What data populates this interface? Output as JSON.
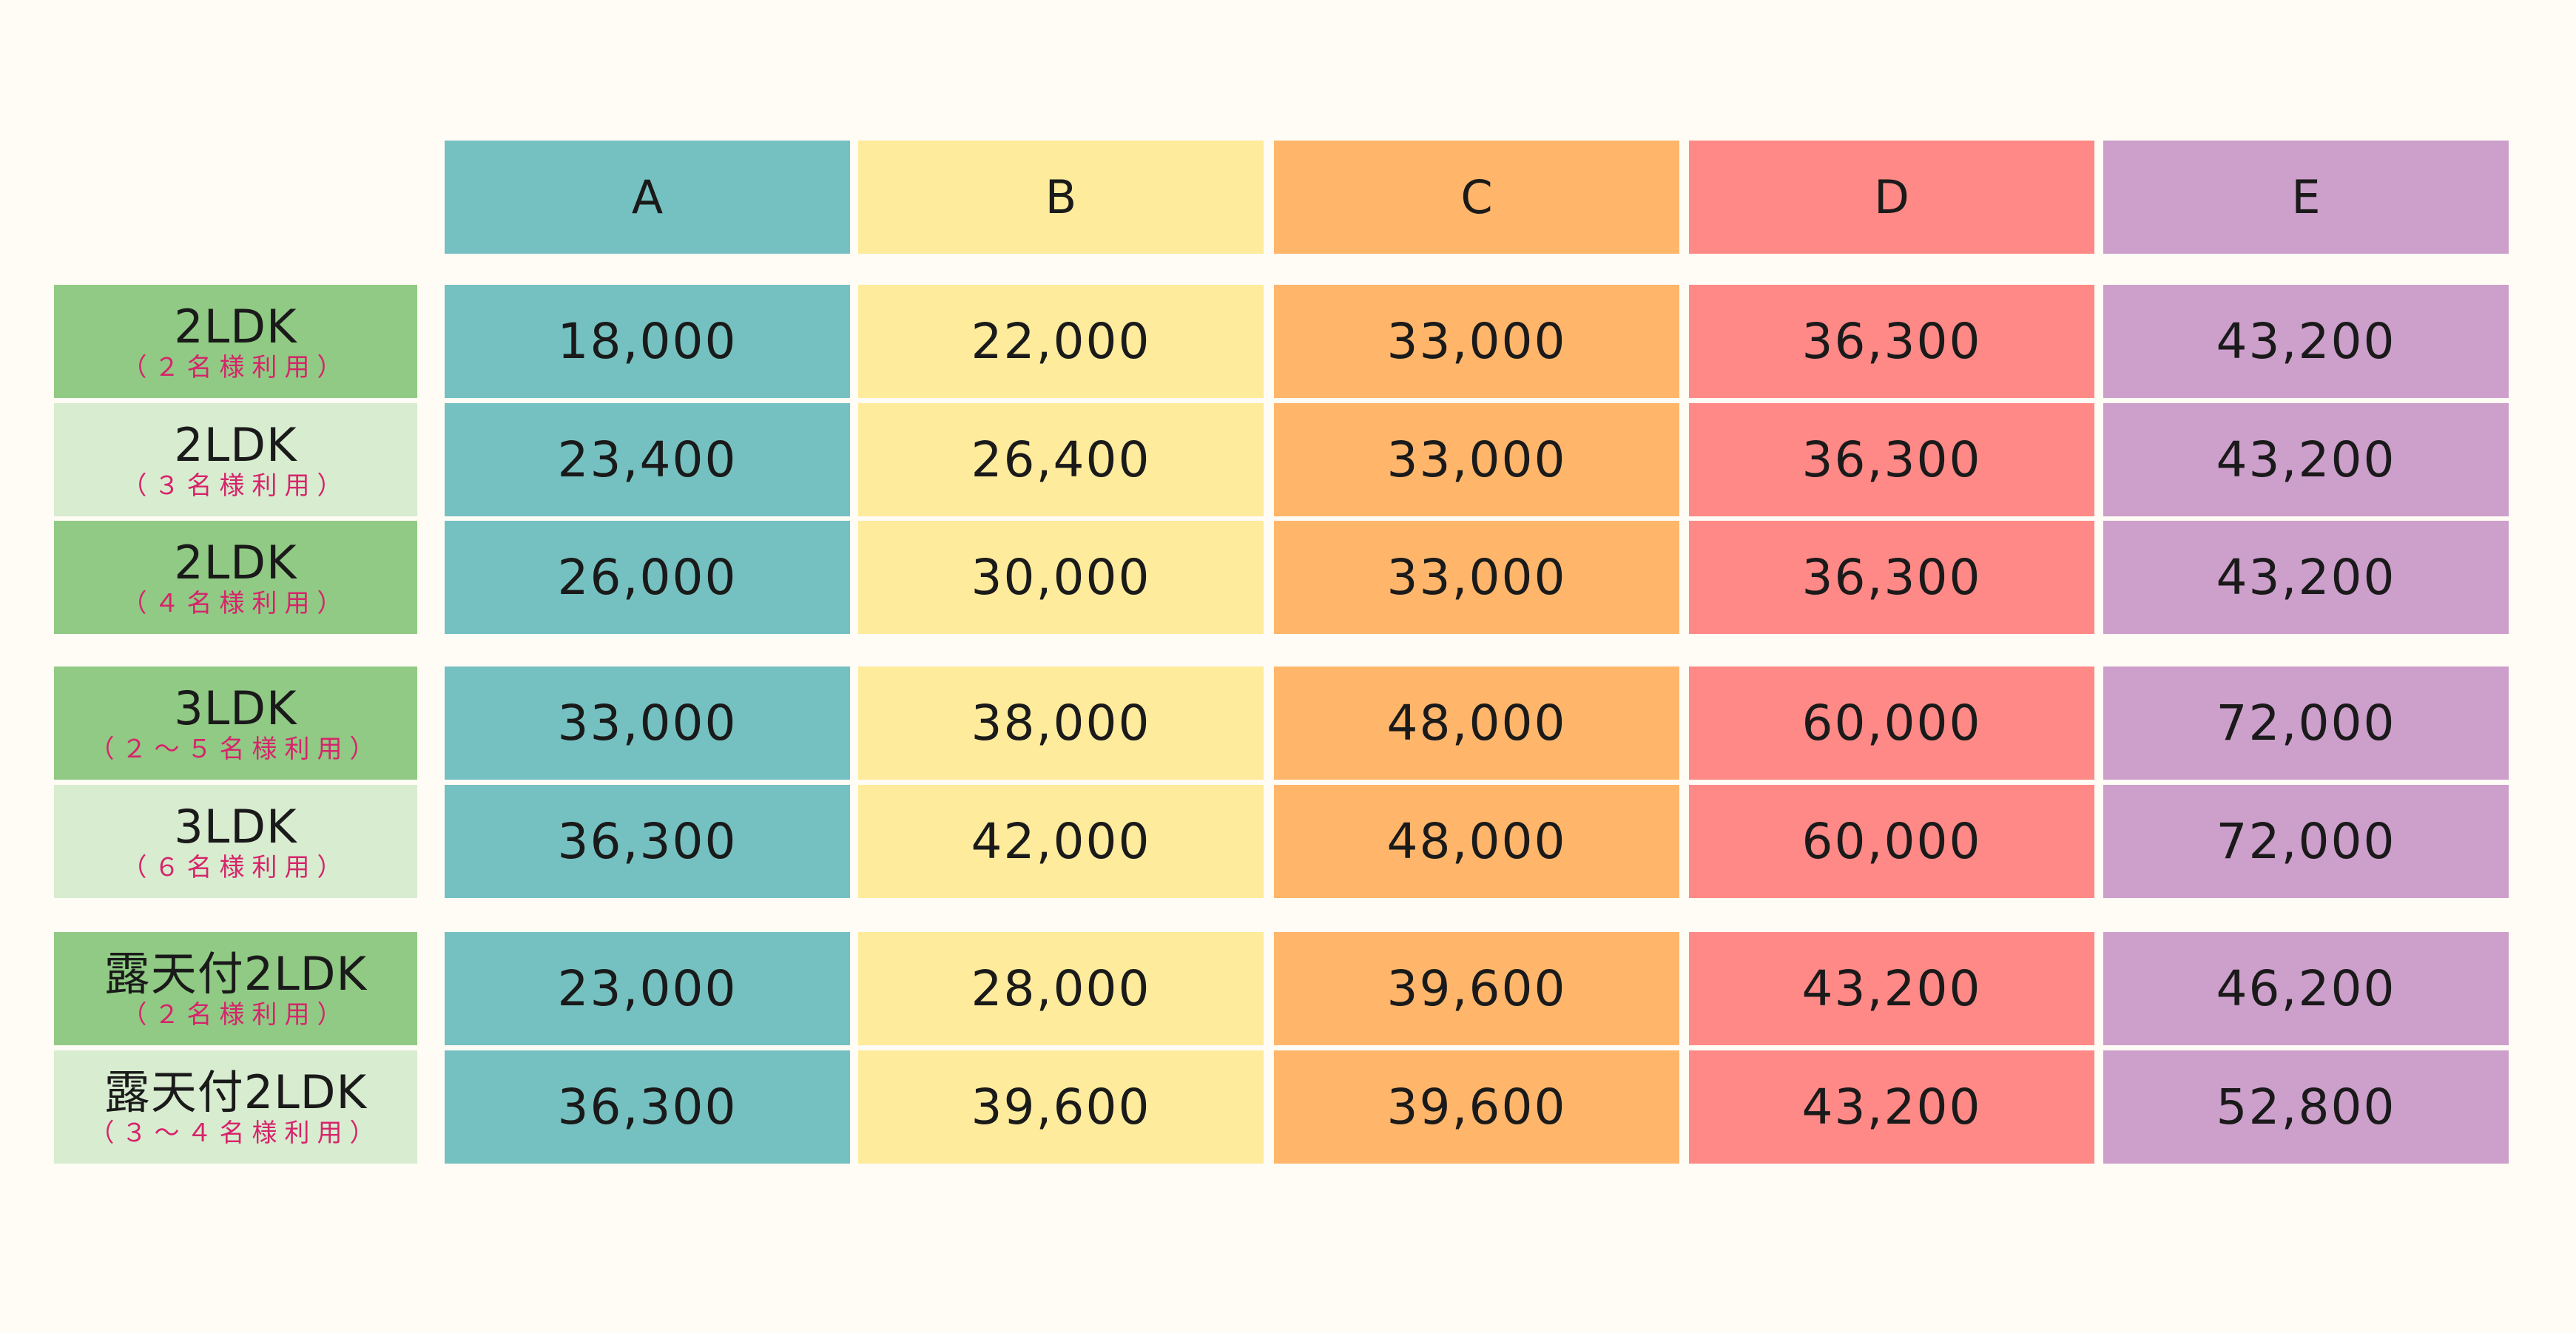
{
  "chart_data": {
    "type": "table",
    "columns": [
      "A",
      "B",
      "C",
      "D",
      "E"
    ],
    "column_colors": [
      "#75c1c1",
      "#feeb9c",
      "#ffb66b",
      "#ff8986",
      "#cd9fcb"
    ],
    "row_label_colors": [
      "#90ca84",
      "#d8ecd0"
    ],
    "rows": [
      {
        "label": "2LDK",
        "sub": "（２名様利用）",
        "values": [
          "18,000",
          "22,000",
          "33,000",
          "36,300",
          "43,200"
        ]
      },
      {
        "label": "2LDK",
        "sub": "（３名様利用）",
        "values": [
          "23,400",
          "26,400",
          "33,000",
          "36,300",
          "43,200"
        ]
      },
      {
        "label": "2LDK",
        "sub": "（４名様利用）",
        "values": [
          "26,000",
          "30,000",
          "33,000",
          "36,300",
          "43,200"
        ]
      },
      {
        "label": "3LDK",
        "sub": "（２～５名様利用）",
        "values": [
          "33,000",
          "38,000",
          "48,000",
          "60,000",
          "72,000"
        ]
      },
      {
        "label": "3LDK",
        "sub": "（６名様利用）",
        "values": [
          "36,300",
          "42,000",
          "48,000",
          "60,000",
          "72,000"
        ]
      },
      {
        "label": "露天付2LDK",
        "sub": "（２名様利用）",
        "values": [
          "23,000",
          "28,000",
          "39,600",
          "43,200",
          "46,200"
        ]
      },
      {
        "label": "露天付2LDK",
        "sub": "（３～４名様利用）",
        "values": [
          "36,300",
          "39,600",
          "39,600",
          "43,200",
          "52,800"
        ]
      }
    ]
  }
}
